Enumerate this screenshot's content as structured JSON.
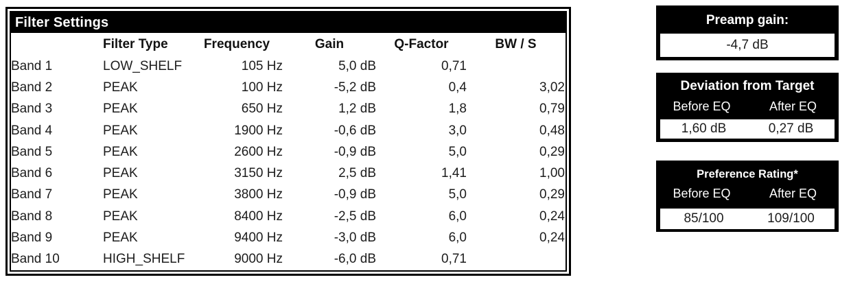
{
  "colors": {
    "header_bg": "#000000",
    "header_text": "#ffffff",
    "body_bg": "#ffffff",
    "text": "#1c1c1c"
  },
  "chart_data": {
    "type": "table",
    "title": "Filter Settings",
    "columns": [
      "",
      "Filter Type",
      "Frequency",
      "Gain",
      "Q-Factor",
      "BW / S"
    ],
    "rows": [
      [
        "Band 1",
        "LOW_SHELF",
        "105 Hz",
        "5,0 dB",
        "0,71",
        ""
      ],
      [
        "Band 2",
        "PEAK",
        "100 Hz",
        "-5,2 dB",
        "0,4",
        "3,02"
      ],
      [
        "Band 3",
        "PEAK",
        "650 Hz",
        "1,2 dB",
        "1,8",
        "0,79"
      ],
      [
        "Band 4",
        "PEAK",
        "1900 Hz",
        "-0,6 dB",
        "3,0",
        "0,48"
      ],
      [
        "Band 5",
        "PEAK",
        "2600 Hz",
        "-0,9 dB",
        "5,0",
        "0,29"
      ],
      [
        "Band 6",
        "PEAK",
        "3150 Hz",
        "2,5 dB",
        "1,41",
        "1,00"
      ],
      [
        "Band 7",
        "PEAK",
        "3800 Hz",
        "-0,9 dB",
        "5,0",
        "0,29"
      ],
      [
        "Band 8",
        "PEAK",
        "8400 Hz",
        "-2,5 dB",
        "6,0",
        "0,24"
      ],
      [
        "Band 9",
        "PEAK",
        "9400 Hz",
        "-3,0 dB",
        "6,0",
        "0,24"
      ],
      [
        "Band 10",
        "HIGH_SHELF",
        "9000 Hz",
        "-6,0 dB",
        "0,71",
        ""
      ]
    ],
    "preamp": {
      "title": "Preamp gain:",
      "value": "-4,7 dB"
    },
    "deviation": {
      "title": "Deviation from Target",
      "cols": [
        "Before EQ",
        "After EQ"
      ],
      "values": [
        "1,60 dB",
        "0,27 dB"
      ]
    },
    "preference": {
      "title": "Preference Rating*",
      "cols": [
        "Before EQ",
        "After EQ"
      ],
      "values": [
        "85/100",
        "109/100"
      ]
    }
  }
}
